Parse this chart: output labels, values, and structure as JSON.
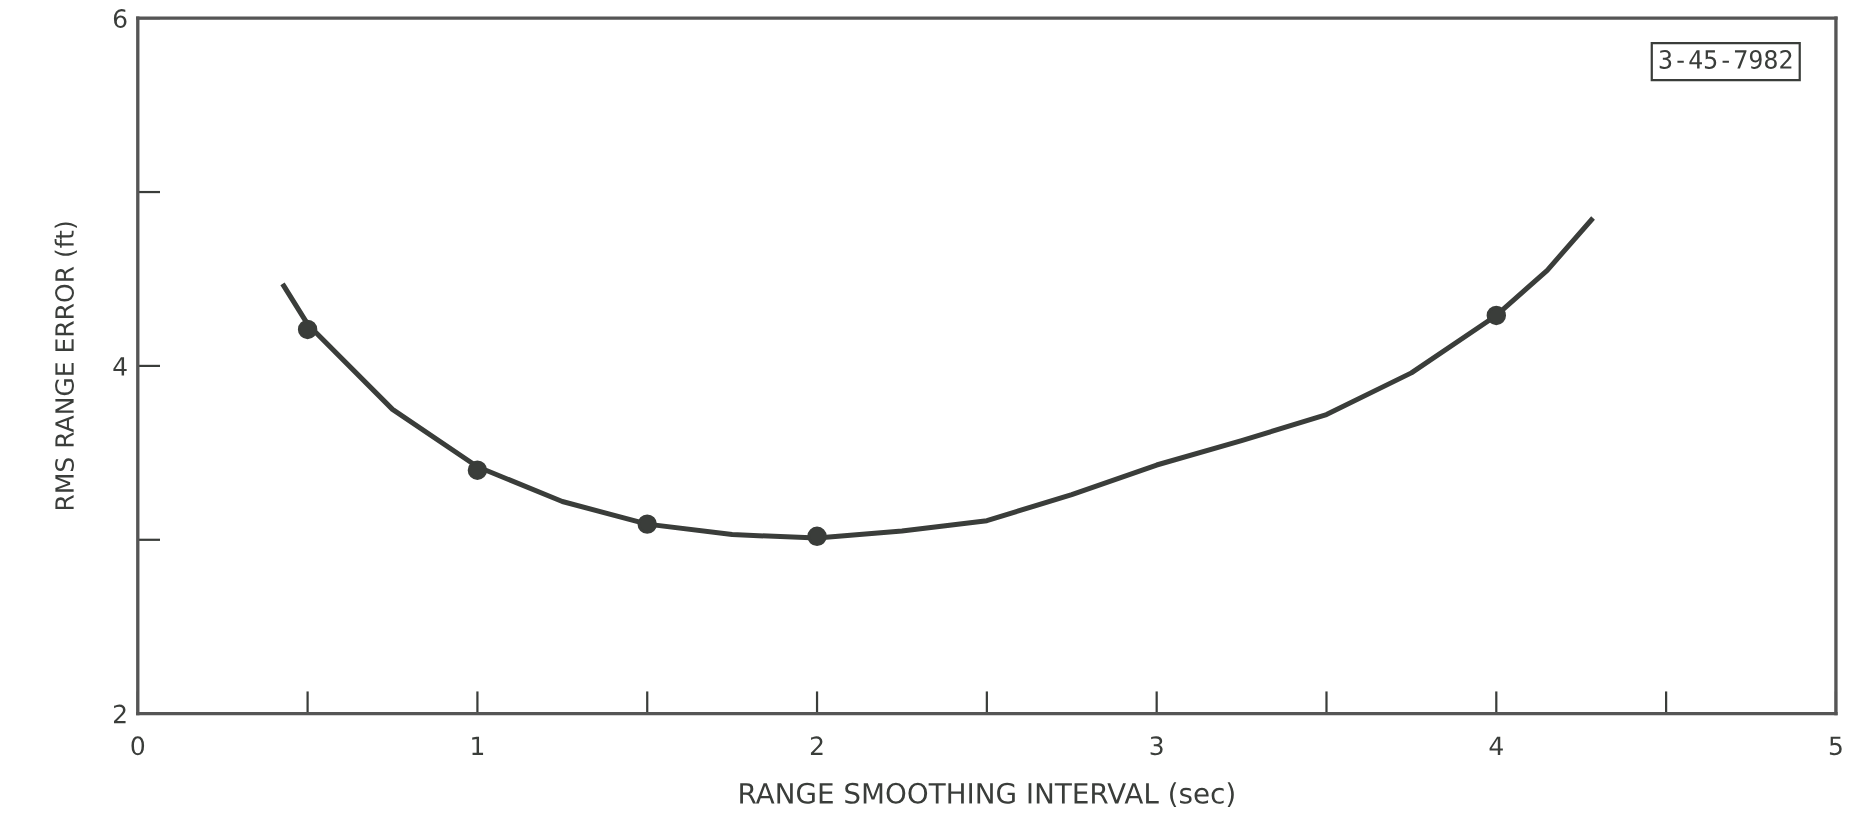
{
  "chart_data": {
    "type": "line",
    "xlabel": "RANGE SMOOTHING INTERVAL (sec)",
    "ylabel": "RMS RANGE ERROR (ft)",
    "xlim": [
      0,
      5
    ],
    "ylim": [
      2,
      6
    ],
    "xticks": [
      0,
      {
        "value": 0.5,
        "label": null
      },
      1,
      {
        "value": 1.5,
        "label": null
      },
      2,
      {
        "value": 2.5,
        "label": null
      },
      3,
      {
        "value": 3.5,
        "label": null
      },
      4,
      {
        "value": 4.5,
        "label": null
      },
      5
    ],
    "yticks": [
      2,
      {
        "value": 3,
        "label": null
      },
      4,
      {
        "value": 5,
        "label": null
      },
      6
    ],
    "grid": false,
    "annotations": [
      "3-45-7982"
    ],
    "series": [
      {
        "type": "scatter",
        "color": "#3a3d3a",
        "marker": "circle",
        "x": [
          0.5,
          1,
          1.5,
          2,
          4
        ],
        "values": [
          4.21,
          3.4,
          3.09,
          3.02,
          4.29
        ]
      },
      {
        "color": "#3a3d3a",
        "line_style": "solid",
        "x": [
          0.43,
          0.5,
          0.75,
          1.0,
          1.25,
          1.5,
          1.75,
          2.0,
          2.25,
          2.5,
          2.75,
          3.0,
          3.25,
          3.5,
          3.75,
          4.0,
          4.15,
          4.28
        ],
        "values": [
          4.46,
          4.24,
          3.75,
          3.42,
          3.22,
          3.09,
          3.03,
          3.01,
          3.05,
          3.11,
          3.26,
          3.43,
          3.57,
          3.72,
          3.96,
          4.29,
          4.55,
          4.84
        ]
      }
    ]
  }
}
